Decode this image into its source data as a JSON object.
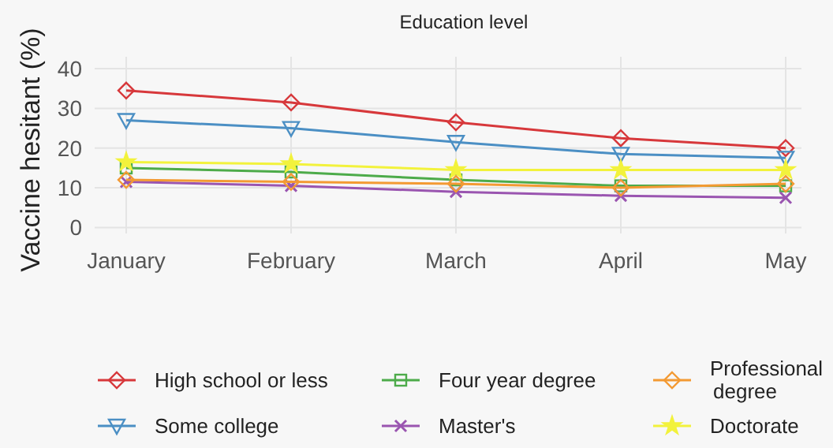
{
  "chart_data": {
    "type": "line",
    "title": "Education level",
    "ylabel": "Vaccine hesitant (%)",
    "categories": [
      "January",
      "February",
      "March",
      "April",
      "May"
    ],
    "ylim": [
      -1.5,
      43
    ],
    "yticks": [
      0,
      10,
      20,
      30,
      40
    ],
    "grid": true,
    "legend": "bottom",
    "series": [
      {
        "name": "High school or less",
        "color": "#d7383b",
        "marker": "diamond",
        "values": [
          34.5,
          31.5,
          26.5,
          22.5,
          20
        ]
      },
      {
        "name": "Some college",
        "color": "#4b8fc4",
        "marker": "triangle",
        "values": [
          27,
          25,
          21.5,
          18.5,
          17.5
        ]
      },
      {
        "name": "Four year degree",
        "color": "#4dab4a",
        "marker": "square",
        "values": [
          15,
          14,
          12,
          10.5,
          10.5
        ]
      },
      {
        "name": "Master's",
        "color": "#9a55b0",
        "marker": "cross",
        "values": [
          11.5,
          10.5,
          9,
          8,
          7.5
        ]
      },
      {
        "name": "Professional degree",
        "color": "#f39a33",
        "marker": "diamond",
        "values": [
          12,
          11.5,
          11,
          10,
          11
        ]
      },
      {
        "name": "Doctorate",
        "color": "#f2f23c",
        "marker": "star",
        "values": [
          16.5,
          16,
          14.5,
          14.5,
          14.5
        ]
      }
    ]
  }
}
